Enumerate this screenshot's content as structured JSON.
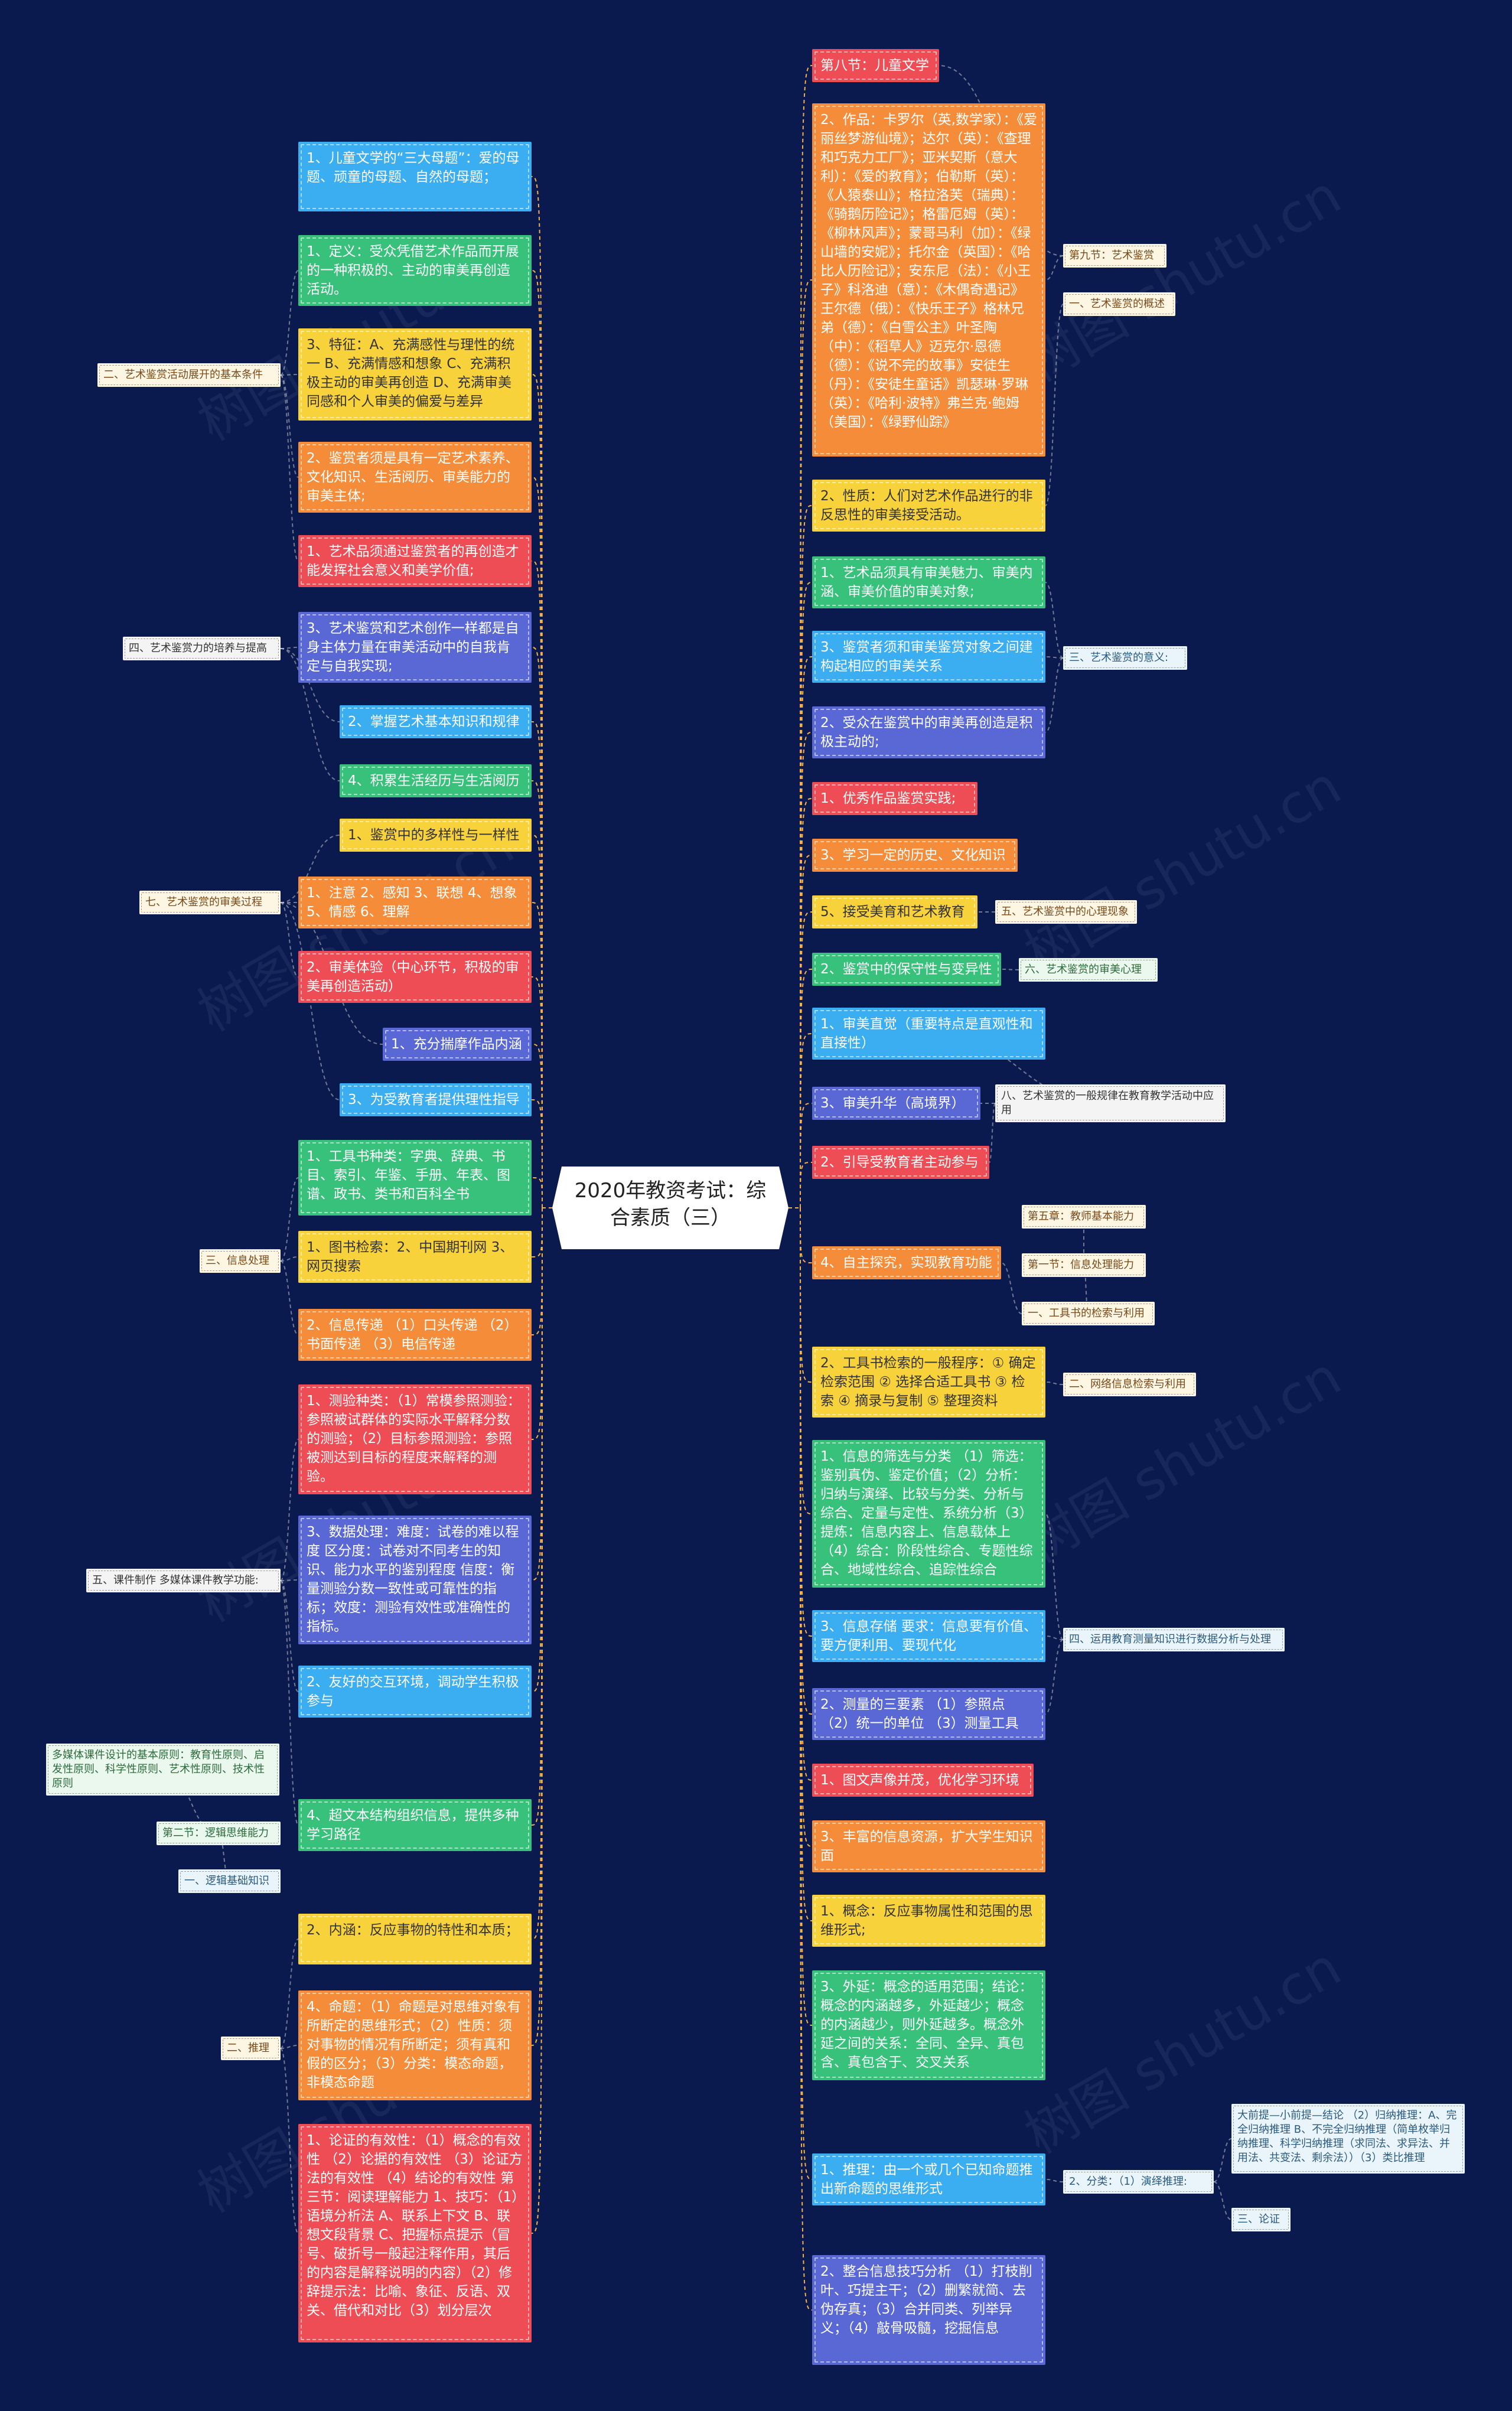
{
  "center": "2020年教资考试：综合素质（三）",
  "left": [
    {
      "id": "l1",
      "text": "1、儿童文学的“三大母题”：爱的母题、顽童的母题、自然的母题；",
      "color": "blue"
    },
    {
      "id": "l2",
      "text": "1、定义：受众凭借艺术作品而开展的一种积极的、主动的审美再创造活动。",
      "color": "green"
    },
    {
      "id": "l3",
      "text": "3、特征：A、充满感性与理性的统一 B、充满情感和想象 C、充满积极主动的审美再创造 D、充满审美同感和个人审美的偏爱与差异",
      "color": "yellow"
    },
    {
      "id": "l4",
      "text": "2、鉴赏者须是具有一定艺术素养、文化知识、生活阅历、审美能力的审美主体;",
      "color": "orange"
    },
    {
      "id": "l5",
      "text": "1、艺术品须通过鉴赏者的再创造才能发挥社会意义和美学价值;",
      "color": "red"
    },
    {
      "id": "l6",
      "text": "3、艺术鉴赏和艺术创作一样都是自身主体力量在审美活动中的自我肯定与自我实现;",
      "color": "indigo"
    },
    {
      "id": "l7",
      "text": "2、掌握艺术基本知识和规律",
      "color": "blue"
    },
    {
      "id": "l8",
      "text": "4、积累生活经历与生活阅历",
      "color": "green"
    },
    {
      "id": "l9",
      "text": "1、鉴赏中的多样性与一样性",
      "color": "yellow"
    },
    {
      "id": "l10",
      "text": "1、注意 2、感知 3、联想 4、想象 5、情感 6、理解",
      "color": "orange"
    },
    {
      "id": "l11",
      "text": "2、审美体验（中心环节，积极的审美再创造活动）",
      "color": "red"
    },
    {
      "id": "l12",
      "text": "1、充分揣摩作品内涵",
      "color": "indigo"
    },
    {
      "id": "l13",
      "text": "3、为受教育者提供理性指导",
      "color": "blue"
    },
    {
      "id": "l14",
      "text": "1、工具书种类：字典、辞典、书目、索引、年鉴、手册、年表、图谱、政书、类书和百科全书",
      "color": "green"
    },
    {
      "id": "l15",
      "text": "1、图书检索：2、中国期刊网 3、网页搜索",
      "color": "yellow"
    },
    {
      "id": "l16",
      "text": "2、信息传递 （1）口头传递 （2）书面传递 （3）电信传递",
      "color": "orange"
    },
    {
      "id": "l17",
      "text": "1、测验种类：（1）常模参照测验：参照被试群体的实际水平解释分数的测验；（2）目标参照测验：参照被测达到目标的程度来解释的测验。",
      "color": "red"
    },
    {
      "id": "l18",
      "text": "3、数据处理：难度：试卷的难以程度 区分度：试卷对不同考生的知识、能力水平的鉴别程度 信度：衡量测验分数一致性或可靠性的指标；效度：测验有效性或准确性的指标。",
      "color": "indigo"
    },
    {
      "id": "l19",
      "text": "2、友好的交互环境，调动学生积极参与",
      "color": "blue"
    },
    {
      "id": "l20",
      "text": "4、超文本结构组织信息，提供多种学习路径",
      "color": "green"
    },
    {
      "id": "l21",
      "text": "2、内涵：反应事物的特性和本质；",
      "color": "yellow"
    },
    {
      "id": "l22",
      "text": "4、命题：（1）命题是对思维对象有所断定的思维形式；（2）性质：须对事物的情况有所断定；须有真和假的区分；（3）分类：模态命题，非模态命题",
      "color": "orange"
    },
    {
      "id": "l23",
      "text": "1、论证的有效性：（1）概念的有效性 （2）论据的有效性 （3）论证方法的有效性 （4）结论的有效性 第三节：阅读理解能力 1、技巧：（1）语境分析法 A、联系上下文 B、联想文段背景 C、把握标点提示（冒号、破折号一般起注释作用，其后的内容是解释说明的内容）（2）修辞提示法：比喻、象征、反语、双关、借代和对比（3）划分层次",
      "color": "red"
    }
  ],
  "left_labels": [
    {
      "id": "ll1",
      "text": "二、艺术鉴赏活动展开的基本条件",
      "style": "cream"
    },
    {
      "id": "ll2",
      "text": "四、艺术鉴赏力的培养与提高",
      "style": "white"
    },
    {
      "id": "ll3",
      "text": "七、艺术鉴赏的审美过程",
      "style": "cream"
    },
    {
      "id": "ll4",
      "text": "三、信息处理",
      "style": "cream"
    },
    {
      "id": "ll5",
      "text": "五、课件制作 多媒体课件教学功能:",
      "style": "white"
    },
    {
      "id": "ll6",
      "text": "多媒体课件设计的基本原则：教育性原则、启发性原则、科学性原则、艺术性原则、技术性原则",
      "style": "green-l"
    },
    {
      "id": "ll7",
      "text": "第二节：逻辑思维能力",
      "style": "green-l"
    },
    {
      "id": "ll8",
      "text": "一、逻辑基础知识",
      "style": "blue-l"
    },
    {
      "id": "ll9",
      "text": "二、推理",
      "style": "cream"
    }
  ],
  "right": [
    {
      "id": "r1",
      "text": "第八节：儿童文学",
      "color": "red"
    },
    {
      "id": "r2",
      "text": "2、作品：卡罗尔（英,数学家）：《爱丽丝梦游仙境》；达尔（英）：《查理和巧克力工厂》；亚米契斯（意大利）：《爱的教育》；伯勒斯（英）：《人猿泰山》；格拉洛芙（瑞典）：《骑鹅历险记》；格雷厄姆（英）：《柳林风声》；蒙哥马利（加）：《绿山墙的安妮》；托尔金（英国）：《哈比人历险记》；安东尼（法）：《小王子》科洛迪（意）：《木偶奇遇记》王尔德（俄）：《快乐王子》格林兄弟（德）：《白雪公主》叶圣陶（中）：《稻草人》迈克尔·恩德（德）：《说不完的故事》安徒生（丹）：《安徒生童话》凯瑟琳·罗琳（英）：《哈利·波特》弗兰克·鲍姆（美国）：《绿野仙踪》",
      "color": "orange"
    },
    {
      "id": "r3",
      "text": "2、性质：人们对艺术作品进行的非反思性的审美接受活动。",
      "color": "yellow"
    },
    {
      "id": "r4",
      "text": "1、艺术品须具有审美魅力、审美内涵、审美价值的审美对象;",
      "color": "green"
    },
    {
      "id": "r5",
      "text": "3、鉴赏者须和审美鉴赏对象之间建构起相应的审美关系",
      "color": "blue"
    },
    {
      "id": "r6",
      "text": "2、受众在鉴赏中的审美再创造是积极主动的;",
      "color": "indigo"
    },
    {
      "id": "r7",
      "text": "1、优秀作品鉴赏实践;",
      "color": "red"
    },
    {
      "id": "r8",
      "text": "3、学习一定的历史、文化知识",
      "color": "orange"
    },
    {
      "id": "r9",
      "text": "5、接受美育和艺术教育",
      "color": "yellow"
    },
    {
      "id": "r10",
      "text": "2、鉴赏中的保守性与变异性",
      "color": "green"
    },
    {
      "id": "r11",
      "text": "1、审美直觉（重要特点是直观性和直接性）",
      "color": "blue"
    },
    {
      "id": "r12",
      "text": "3、审美升华（高境界）",
      "color": "indigo"
    },
    {
      "id": "r13",
      "text": "2、引导受教育者主动参与",
      "color": "red"
    },
    {
      "id": "r14",
      "text": "4、自主探究，实现教育功能",
      "color": "orange"
    },
    {
      "id": "r15",
      "text": "2、工具书检索的一般程序：① 确定检索范围 ② 选择合适工具书 ③ 检索 ④ 摘录与复制 ⑤ 整理资料",
      "color": "yellow"
    },
    {
      "id": "r16",
      "text": "1、信息的筛选与分类 （1）筛选：鉴别真伪、鉴定价值；（2）分析：归纳与演绎、比较与分类、分析与综合、定量与定性、系统分析（3）提炼：信息内容上、信息载体上（4）综合：阶段性综合、专题性综合、地域性综合、追踪性综合",
      "color": "green"
    },
    {
      "id": "r17",
      "text": "3、信息存储 要求：信息要有价值、要方便利用、要现代化",
      "color": "blue"
    },
    {
      "id": "r18",
      "text": "2、测量的三要素 （1）参照点 （2）统一的单位 （3）测量工具",
      "color": "indigo"
    },
    {
      "id": "r19",
      "text": "1、图文声像并茂，优化学习环境",
      "color": "red"
    },
    {
      "id": "r20",
      "text": "3、丰富的信息资源，扩大学生知识面",
      "color": "orange"
    },
    {
      "id": "r21",
      "text": "1、概念：反应事物属性和范围的思维形式;",
      "color": "yellow"
    },
    {
      "id": "r22",
      "text": "3、外延：概念的适用范围；结论：概念的内涵越多，外延越少；概念的内涵越少，则外延越多。概念外延之间的关系：全同、全异、真包含、真包含于、交叉关系",
      "color": "green"
    },
    {
      "id": "r23",
      "text": "1、推理：由一个或几个已知命题推出新命题的思维形式",
      "color": "blue"
    },
    {
      "id": "r24",
      "text": "2、整合信息技巧分析 （1）打枝削叶、巧提主干；（2）删繁就简、去伪存真；（3）合并同类、列举异义；（4）敲骨吸髓，挖掘信息",
      "color": "indigo"
    }
  ],
  "right_labels": [
    {
      "id": "rl1",
      "text": "第九节：艺术鉴赏",
      "style": "cream"
    },
    {
      "id": "rl2",
      "text": "一、艺术鉴赏的概述",
      "style": "cream"
    },
    {
      "id": "rl3",
      "text": "三、艺术鉴赏的意义:",
      "style": "blue-l"
    },
    {
      "id": "rl4",
      "text": "五、艺术鉴赏中的心理现象",
      "style": "cream"
    },
    {
      "id": "rl5",
      "text": "六、艺术鉴赏的审美心理",
      "style": "green-l"
    },
    {
      "id": "rl6",
      "text": "八、艺术鉴赏的一般规律在教育教学活动中应用",
      "style": "white"
    },
    {
      "id": "rl7",
      "text": "第五章：教师基本能力",
      "style": "cream"
    },
    {
      "id": "rl8",
      "text": "第一节：信息处理能力",
      "style": "cream"
    },
    {
      "id": "rl9",
      "text": "一、工具书的检索与利用",
      "style": "cream"
    },
    {
      "id": "rl10",
      "text": "二、网络信息检索与利用",
      "style": "cream"
    },
    {
      "id": "rl11",
      "text": "四、运用教育测量知识进行数据分析与处理",
      "style": "blue-l"
    },
    {
      "id": "rl12",
      "text": "2、分类：（1）演绎推理:",
      "style": "blue-l"
    },
    {
      "id": "rl13",
      "text": "大前提—小前提—结论 （2）归纳推理：A、完全归纳推理 B、不完全归纳推理（简单枚举归纳推理、科学归纳推理（求同法、求异法、并用法、共变法、剩余法））（3）类比推理",
      "style": "blue-l"
    },
    {
      "id": "rl14",
      "text": "三、论证",
      "style": "blue-l"
    }
  ],
  "watermark": "树图 shutu.cn",
  "colors": {
    "background": "#0a1a4f",
    "blue": "#3aaef0",
    "green": "#37c17a",
    "yellow": "#f8d23a",
    "orange": "#f58c3a",
    "red": "#ef4d56",
    "indigo": "#5a68d6",
    "line": "#f6b04a"
  }
}
